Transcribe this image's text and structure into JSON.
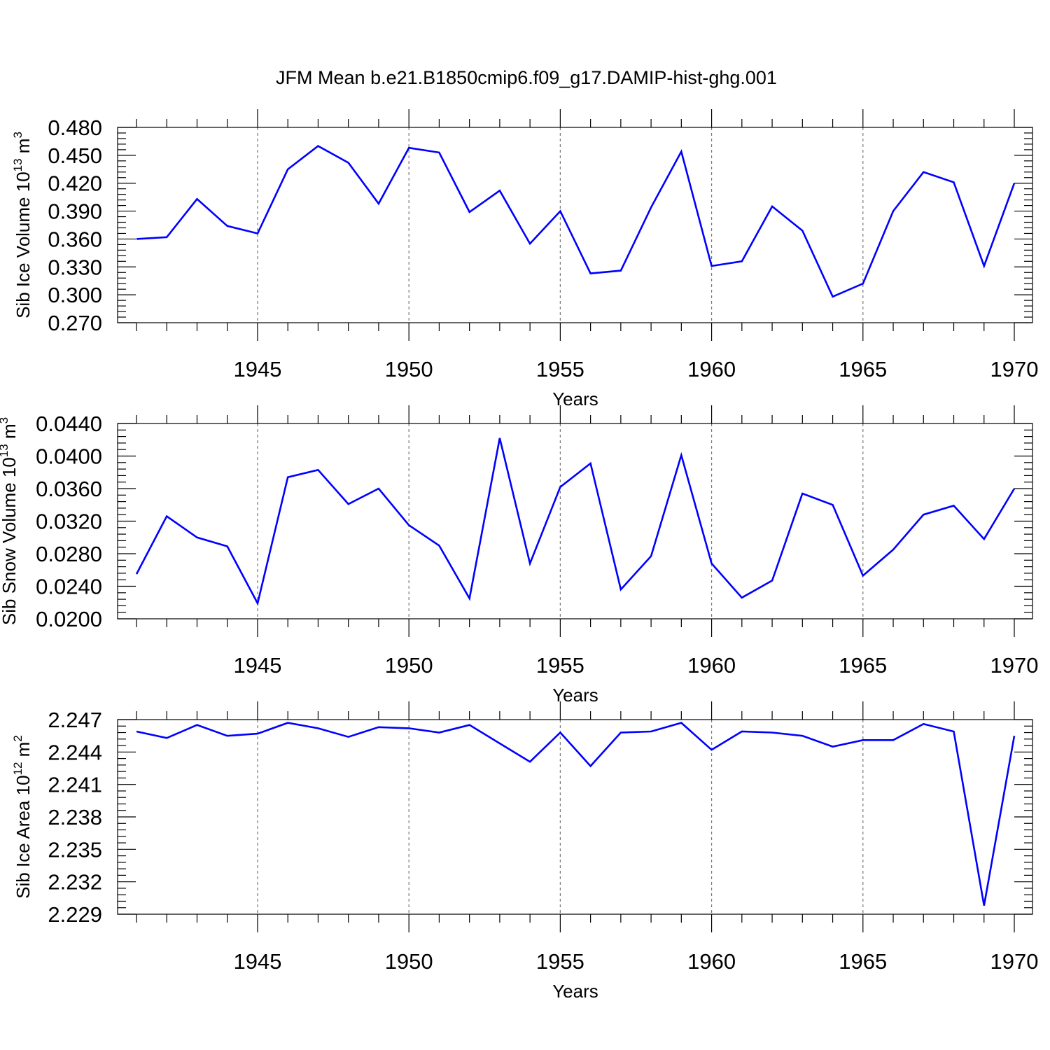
{
  "chart_data": {
    "title": "JFM Mean b.e21.B1850cmip6.f09_g17.DAMIP-hist-ghg.001",
    "type": "line",
    "series_color": "#0000ff",
    "grid_color": "#777777",
    "x": [
      1941,
      1942,
      1943,
      1944,
      1945,
      1946,
      1947,
      1948,
      1949,
      1950,
      1951,
      1952,
      1953,
      1954,
      1955,
      1956,
      1957,
      1958,
      1959,
      1960,
      1961,
      1962,
      1963,
      1964,
      1965,
      1966,
      1967,
      1968,
      1969,
      1970
    ],
    "xlim": [
      1941,
      1970
    ],
    "xticks": [
      1945,
      1950,
      1955,
      1960,
      1965,
      1970
    ],
    "xtick_labels": [
      "1945",
      "1950",
      "1955",
      "1960",
      "1965",
      "1970"
    ],
    "xlabel": "Years",
    "panels": [
      {
        "name": "ice-volume",
        "ylabel_main": "Sib Ice Volume 10",
        "ylabel_exp": "13",
        "ylabel_unit": " m",
        "ylabel_unit_exp": "3",
        "ylim": [
          0.27,
          0.48
        ],
        "yticks": [
          0.27,
          0.3,
          0.33,
          0.36,
          0.39,
          0.42,
          0.45,
          0.48
        ],
        "ytick_labels": [
          "0.270",
          "0.300",
          "0.330",
          "0.360",
          "0.390",
          "0.420",
          "0.450",
          "0.480"
        ],
        "values": [
          0.36,
          0.362,
          0.403,
          0.374,
          0.366,
          0.435,
          0.46,
          0.442,
          0.398,
          0.458,
          0.453,
          0.389,
          0.412,
          0.355,
          0.39,
          0.323,
          0.326,
          0.394,
          0.454,
          0.331,
          0.336,
          0.395,
          0.369,
          0.298,
          0.312,
          0.39,
          0.432,
          0.421,
          0.331,
          0.42
        ]
      },
      {
        "name": "snow-volume",
        "ylabel_main": "Sib Snow Volume 10",
        "ylabel_exp": "13",
        "ylabel_unit": " m",
        "ylabel_unit_exp": "3",
        "ylim": [
          0.02,
          0.044
        ],
        "yticks": [
          0.02,
          0.024,
          0.028,
          0.032,
          0.036,
          0.04,
          0.044
        ],
        "ytick_labels": [
          "0.0200",
          "0.0240",
          "0.0280",
          "0.0320",
          "0.0360",
          "0.0400",
          "0.0440"
        ],
        "values": [
          0.0255,
          0.0326,
          0.03,
          0.0289,
          0.0219,
          0.0374,
          0.0383,
          0.0341,
          0.036,
          0.0315,
          0.029,
          0.0225,
          0.0422,
          0.0268,
          0.0362,
          0.0391,
          0.0236,
          0.0277,
          0.0401,
          0.0268,
          0.0226,
          0.0247,
          0.0354,
          0.034,
          0.0253,
          0.0285,
          0.0328,
          0.0339,
          0.0298,
          0.036
        ]
      },
      {
        "name": "ice-area",
        "ylabel_main": "Sib Ice Area 10",
        "ylabel_exp": "12",
        "ylabel_unit": " m",
        "ylabel_unit_exp": "2",
        "ylim": [
          2.229,
          2.247
        ],
        "yticks": [
          2.229,
          2.232,
          2.235,
          2.238,
          2.241,
          2.244,
          2.247
        ],
        "ytick_labels": [
          "2.229",
          "2.232",
          "2.235",
          "2.238",
          "2.241",
          "2.244",
          "2.247"
        ],
        "values": [
          2.2459,
          2.2453,
          2.2465,
          2.2455,
          2.2457,
          2.2467,
          2.2462,
          2.2454,
          2.2463,
          2.2462,
          2.2458,
          2.2465,
          2.2448,
          2.2431,
          2.2458,
          2.2427,
          2.2458,
          2.2459,
          2.2467,
          2.2442,
          2.2459,
          2.2458,
          2.2455,
          2.2445,
          2.2451,
          2.2451,
          2.2466,
          2.2459,
          2.2298,
          2.2455
        ]
      }
    ]
  }
}
